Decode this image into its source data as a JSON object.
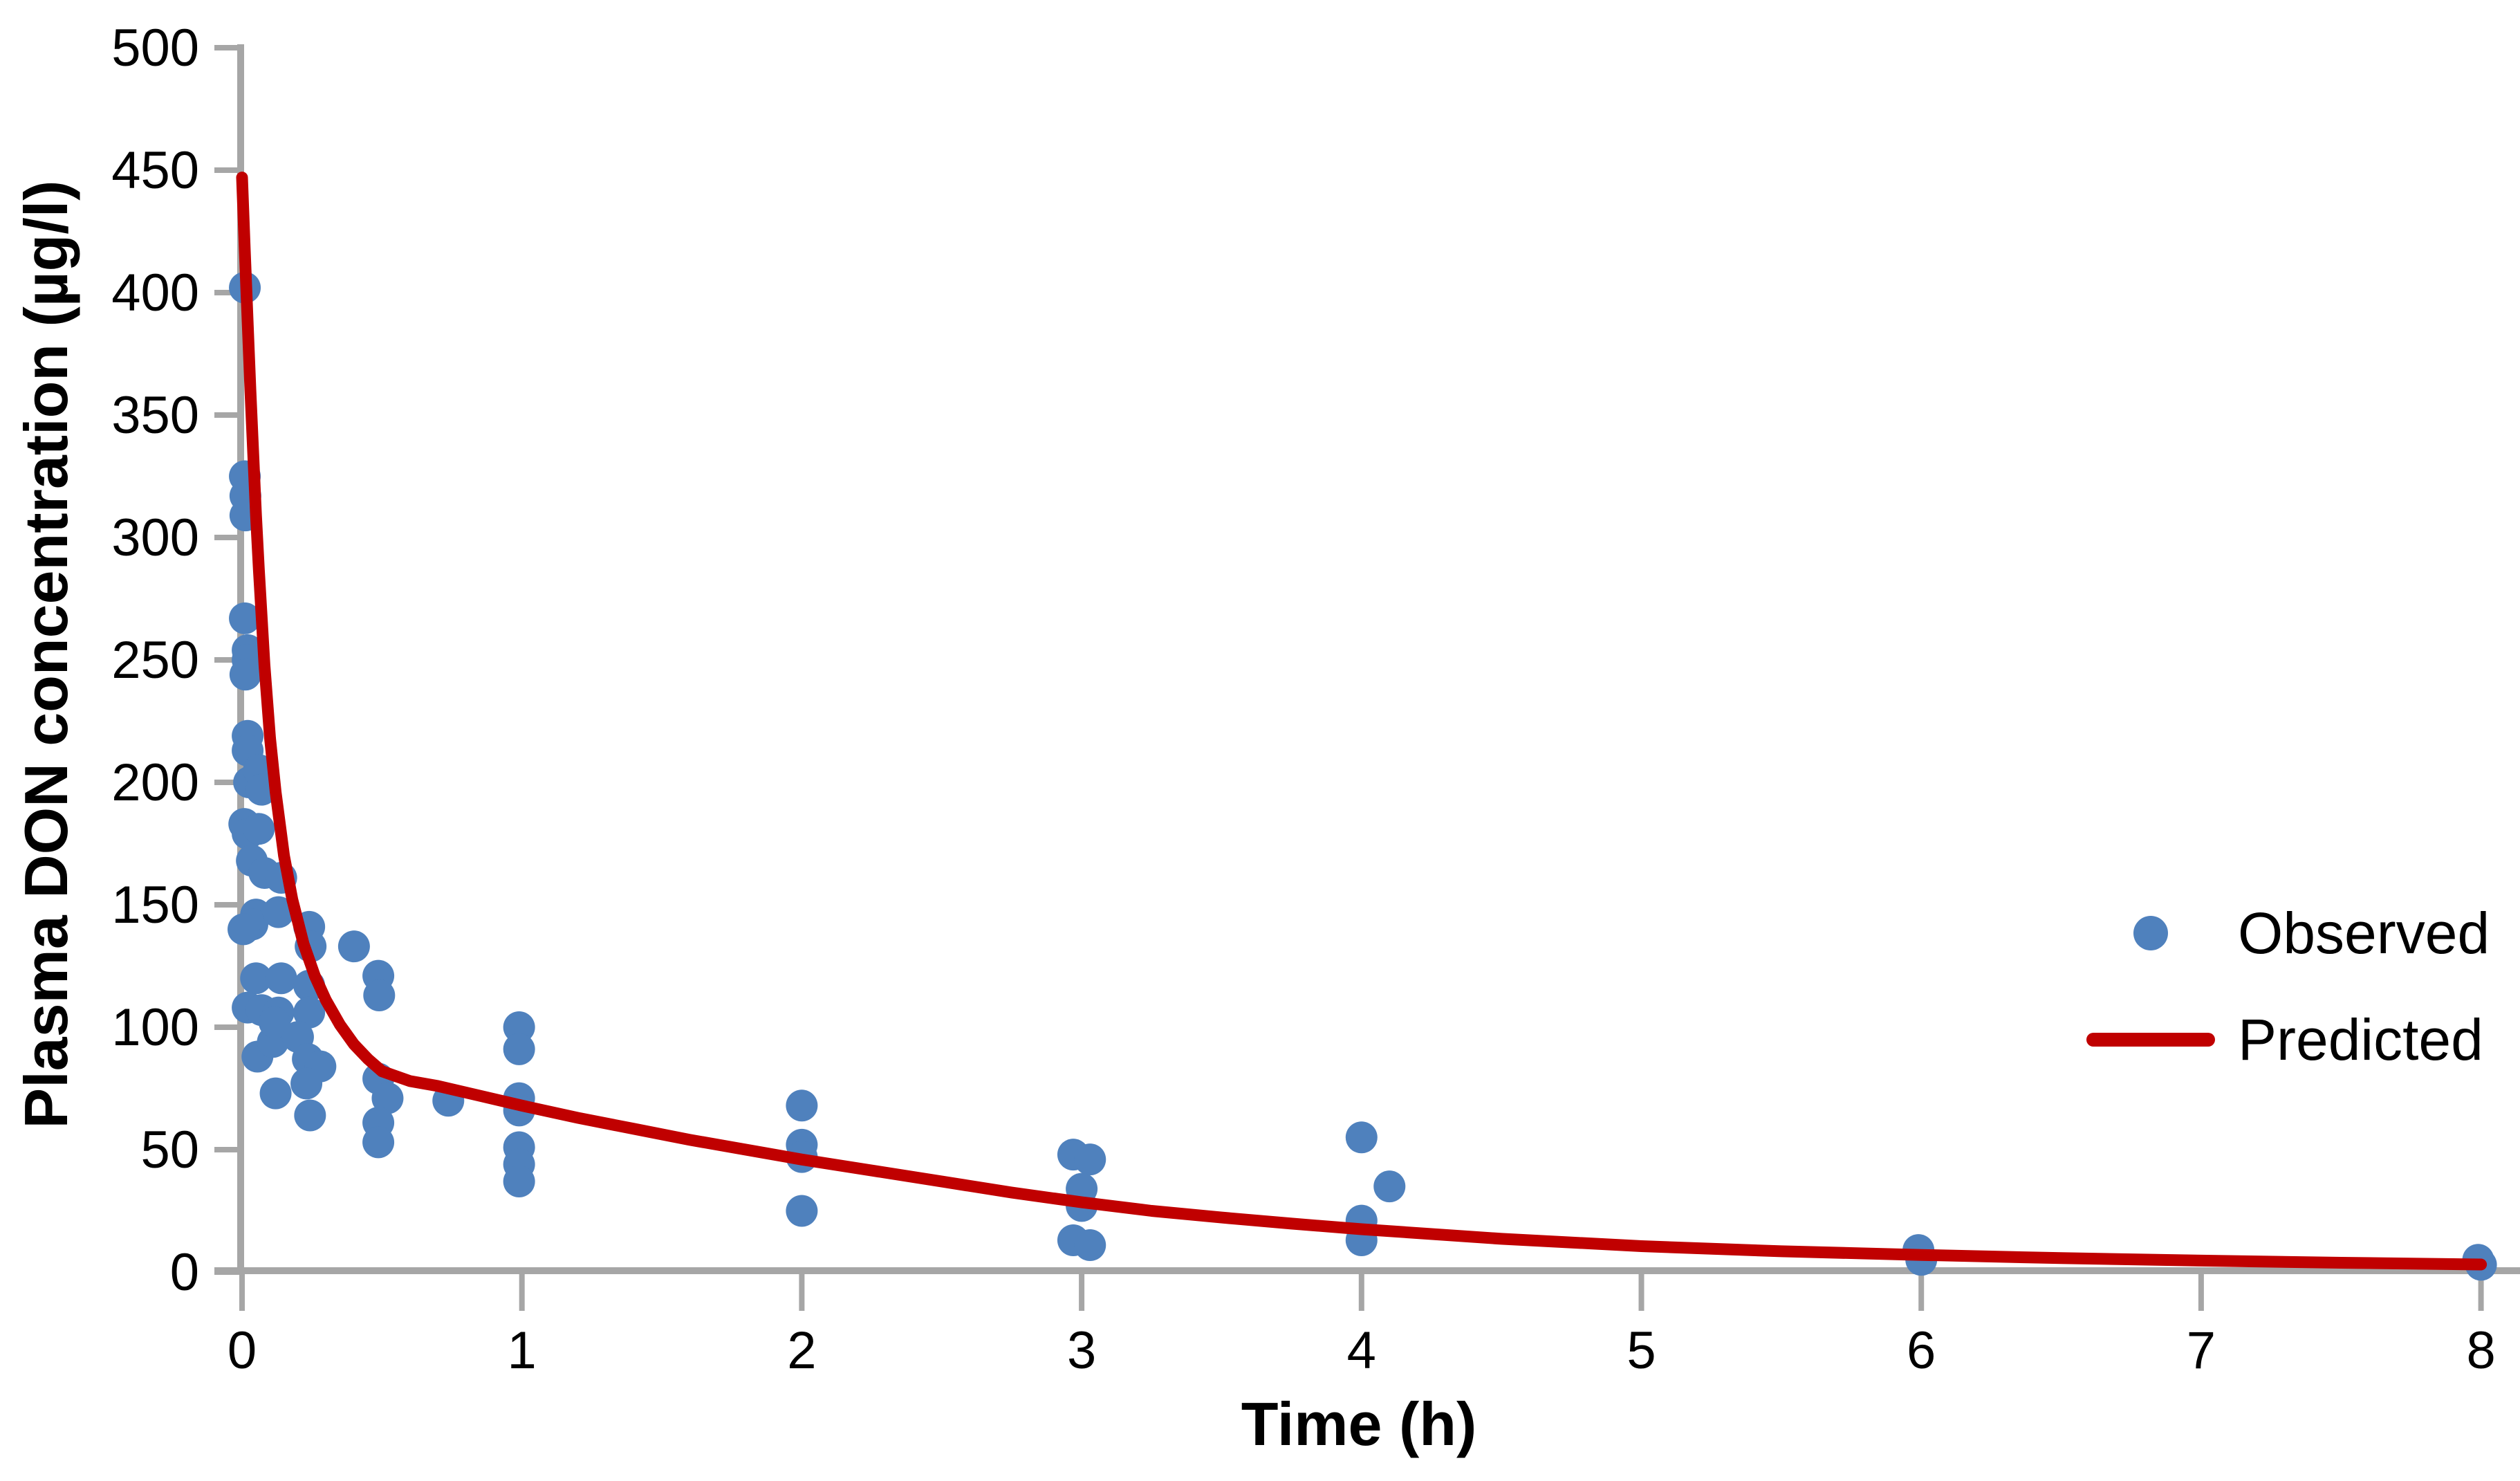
{
  "chart_data": {
    "type": "scatter",
    "title": "",
    "xlabel": "Time (h)",
    "ylabel": "Plasma DON concentration (µg/l)",
    "xlim": [
      0,
      8
    ],
    "ylim": [
      0,
      500
    ],
    "x_ticks": [
      0,
      1,
      2,
      3,
      4,
      5,
      6,
      7,
      8
    ],
    "y_ticks": [
      0,
      50,
      100,
      150,
      200,
      250,
      300,
      350,
      400,
      450,
      500
    ],
    "grid": "off",
    "legend_position": "right-middle",
    "legend": [
      {
        "label": "Observed",
        "type": "marker",
        "color": "#4F81BD"
      },
      {
        "label": "Predicted",
        "type": "line",
        "color": "#C00000"
      }
    ],
    "series": [
      {
        "name": "Observed",
        "type": "scatter",
        "color": "#4F81BD",
        "points": [
          [
            0.01,
            402
          ],
          [
            0.01,
            325
          ],
          [
            0.012,
            317
          ],
          [
            0.012,
            309
          ],
          [
            0.01,
            267
          ],
          [
            0.02,
            254
          ],
          [
            0.02,
            250
          ],
          [
            0.012,
            244
          ],
          [
            0.02,
            219
          ],
          [
            0.02,
            213
          ],
          [
            0.025,
            200
          ],
          [
            0.008,
            183
          ],
          [
            0.02,
            179
          ],
          [
            0.035,
            168
          ],
          [
            0.05,
            146
          ],
          [
            0.037,
            142
          ],
          [
            0.005,
            140
          ],
          [
            0.05,
            120
          ],
          [
            0.02,
            108
          ],
          [
            0.06,
            205
          ],
          [
            0.07,
            197
          ],
          [
            0.06,
            181
          ],
          [
            0.08,
            163
          ],
          [
            0.07,
            107
          ],
          [
            0.055,
            88
          ],
          [
            0.11,
            94
          ],
          [
            0.14,
            161
          ],
          [
            0.13,
            147
          ],
          [
            0.14,
            120
          ],
          [
            0.13,
            106
          ],
          [
            0.116,
            102
          ],
          [
            0.12,
            73
          ],
          [
            0.24,
            141
          ],
          [
            0.245,
            133
          ],
          [
            0.24,
            117
          ],
          [
            0.24,
            106
          ],
          [
            0.2,
            96
          ],
          [
            0.235,
            87
          ],
          [
            0.28,
            84
          ],
          [
            0.23,
            77
          ],
          [
            0.243,
            64
          ],
          [
            0.4,
            133
          ],
          [
            0.487,
            121
          ],
          [
            0.49,
            113
          ],
          [
            0.487,
            79
          ],
          [
            0.52,
            71
          ],
          [
            0.487,
            61
          ],
          [
            0.487,
            53
          ],
          [
            0.737,
            70
          ],
          [
            0.99,
            100
          ],
          [
            0.99,
            91
          ],
          [
            0.99,
            71
          ],
          [
            0.99,
            66
          ],
          [
            0.99,
            51
          ],
          [
            0.99,
            44
          ],
          [
            0.99,
            37
          ],
          [
            2,
            68
          ],
          [
            2,
            52
          ],
          [
            2,
            47
          ],
          [
            2,
            25
          ],
          [
            2.97,
            48
          ],
          [
            3.03,
            46
          ],
          [
            3,
            34
          ],
          [
            3,
            27
          ],
          [
            2.97,
            13
          ],
          [
            3.03,
            11
          ],
          [
            4,
            55
          ],
          [
            4.1,
            35
          ],
          [
            4,
            21
          ],
          [
            4,
            13
          ],
          [
            5.99,
            9
          ],
          [
            6,
            5
          ],
          [
            7.99,
            5
          ],
          [
            8,
            3
          ]
        ]
      },
      {
        "name": "Predicted",
        "type": "line",
        "color": "#C00000",
        "points": [
          [
            0,
            447
          ],
          [
            0.01,
            417
          ],
          [
            0.02,
            388
          ],
          [
            0.03,
            360
          ],
          [
            0.04,
            334
          ],
          [
            0.05,
            309
          ],
          [
            0.06,
            287
          ],
          [
            0.08,
            248
          ],
          [
            0.1,
            218
          ],
          [
            0.12,
            196
          ],
          [
            0.15,
            170
          ],
          [
            0.18,
            152
          ],
          [
            0.22,
            134
          ],
          [
            0.26,
            121
          ],
          [
            0.3,
            111
          ],
          [
            0.35,
            101
          ],
          [
            0.4,
            93
          ],
          [
            0.45,
            87
          ],
          [
            0.5,
            82
          ],
          [
            0.6,
            78
          ],
          [
            0.7,
            76
          ],
          [
            0.85,
            72
          ],
          [
            1,
            68
          ],
          [
            1.2,
            63
          ],
          [
            1.4,
            58.5
          ],
          [
            1.6,
            54
          ],
          [
            1.8,
            50
          ],
          [
            2,
            46
          ],
          [
            2.25,
            41.5
          ],
          [
            2.5,
            37
          ],
          [
            2.75,
            32.5
          ],
          [
            3,
            28.5
          ],
          [
            3.25,
            25
          ],
          [
            3.5,
            22.3
          ],
          [
            3.75,
            19.8
          ],
          [
            4,
            17.5
          ],
          [
            4.5,
            13.6
          ],
          [
            5,
            10.6
          ],
          [
            5.5,
            8.5
          ],
          [
            6,
            7
          ],
          [
            6.5,
            5.7
          ],
          [
            7,
            4.7
          ],
          [
            7.5,
            3.8
          ],
          [
            8,
            3.1
          ]
        ]
      }
    ],
    "colors": {
      "observed": "#4F81BD",
      "predicted": "#C00000",
      "axis": "#A6A6A6",
      "text": "#000000",
      "background": "#FFFFFF"
    }
  }
}
